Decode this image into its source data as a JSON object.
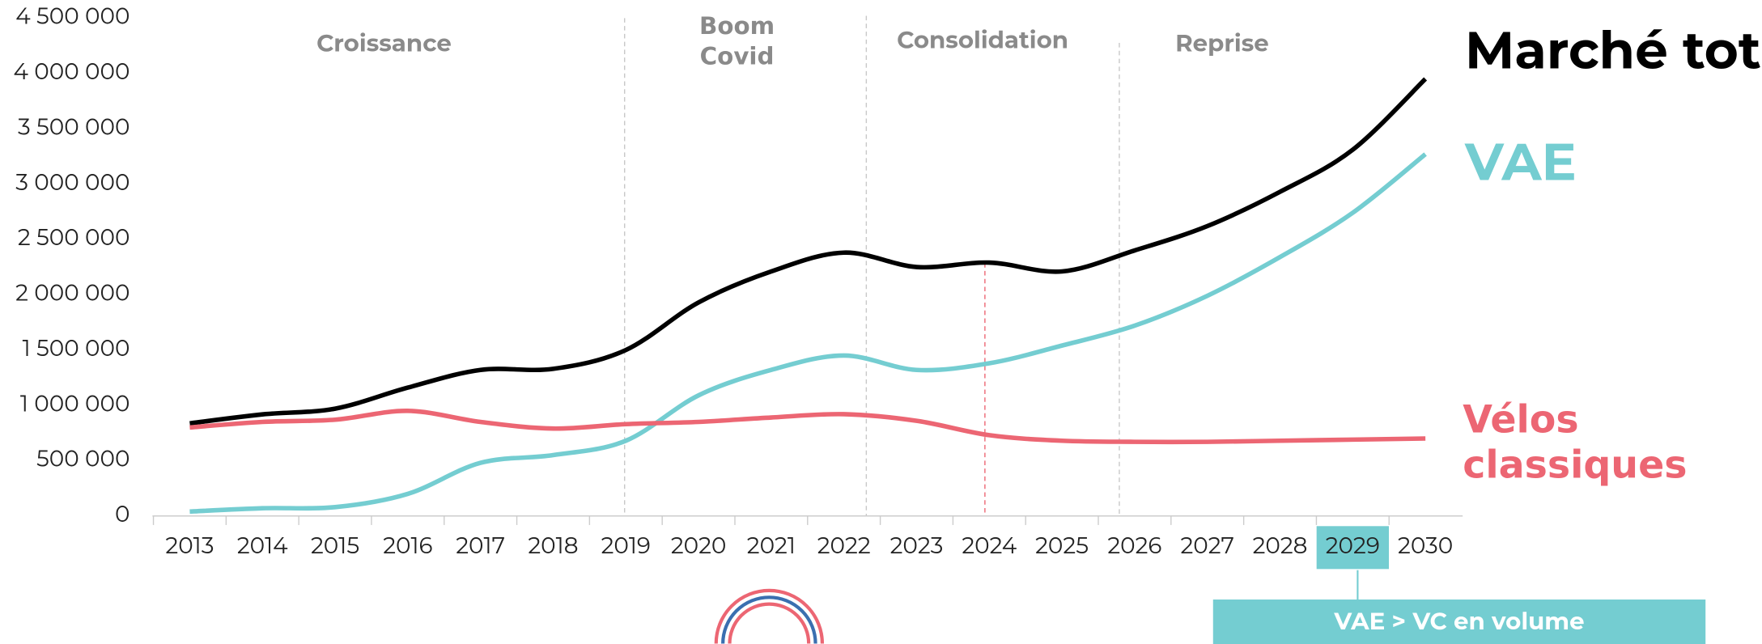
{
  "chart_data": {
    "type": "line",
    "categories": [
      "2013",
      "2014",
      "2015",
      "2016",
      "2017",
      "2018",
      "2019",
      "2020",
      "2021",
      "2022",
      "2023",
      "2024",
      "2025",
      "2026",
      "2027",
      "2028",
      "2029",
      "2030"
    ],
    "series": [
      {
        "name": "Marché total",
        "color": "#000000",
        "values": [
          837000,
          918000,
          970000,
          1160000,
          1320000,
          1330000,
          1500000,
          1930000,
          2210000,
          2380000,
          2250000,
          2290000,
          2210000,
          2400000,
          2620000,
          2930000,
          3310000,
          3950000
        ]
      },
      {
        "name": "VAE",
        "color": "#74cdd1",
        "values": [
          40000,
          70000,
          80000,
          200000,
          480000,
          550000,
          680000,
          1090000,
          1320000,
          1450000,
          1320000,
          1380000,
          1540000,
          1720000,
          1990000,
          2340000,
          2740000,
          3270000
        ]
      },
      {
        "name": "Vélos classiques",
        "color": "#ec6673",
        "values": [
          800000,
          850000,
          870000,
          950000,
          850000,
          790000,
          830000,
          850000,
          890000,
          920000,
          860000,
          730000,
          680000,
          670000,
          670000,
          680000,
          690000,
          700000
        ]
      }
    ],
    "ylim": [
      0,
      4500000
    ],
    "yticks": [
      0,
      {
        "value": 500000,
        "label": "500 000"
      },
      {
        "value": 1000000,
        "label": "1 000 000"
      },
      {
        "value": 1500000,
        "label": "1 500 000"
      },
      {
        "value": 2000000,
        "label": "2 000 000"
      },
      {
        "value": 2500000,
        "label": "2 500 000"
      },
      {
        "value": 3000000,
        "label": "3 000 000"
      },
      {
        "value": 3500000,
        "label": "3 500 000"
      },
      {
        "value": 4000000,
        "label": "4 000 000"
      },
      {
        "value": 4500000,
        "label": "4 500 000"
      }
    ],
    "phases": [
      "Croissance",
      "Boom Covid",
      "Consolidation",
      "Reprise"
    ],
    "annotation": "VAE > VC en volume"
  }
}
